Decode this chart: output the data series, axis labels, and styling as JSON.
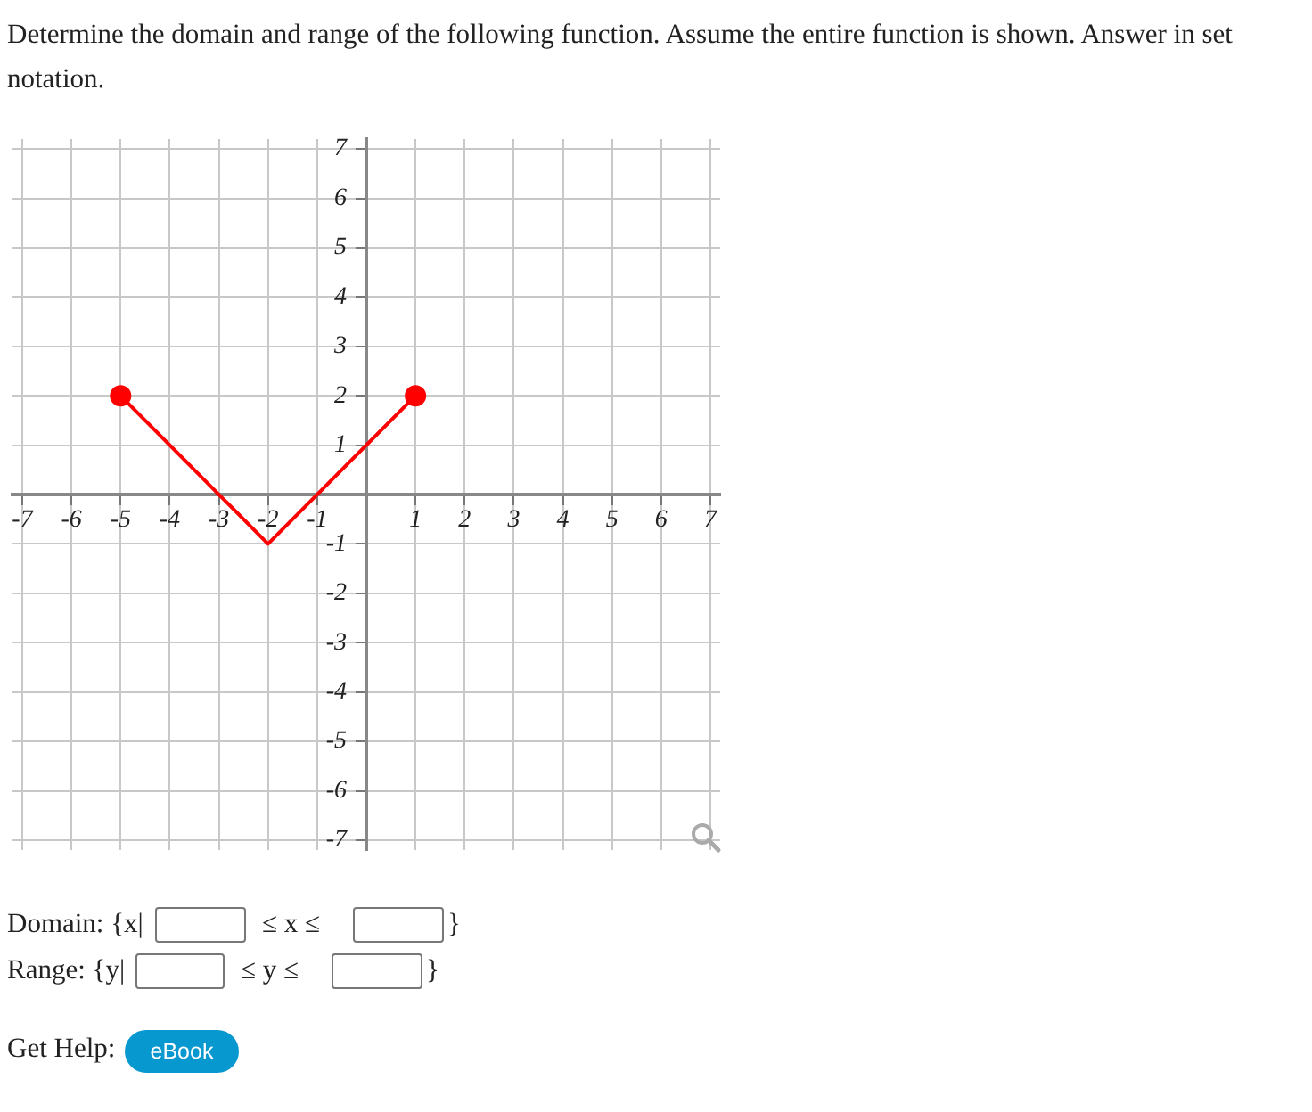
{
  "chart_data": {
    "type": "line",
    "title": "Determine the domain and range of the following function. Assume the entire function is shown. Answer in set notation.",
    "annotations": [
      "Domain: {x|",
      "≤ x ≤",
      "}",
      "Range: {y|",
      "≤ y ≤",
      "}",
      "Get Help:",
      "eBook"
    ],
    "series": [
      {
        "type": "line",
        "color": "#ff0000",
        "x": [
          -5,
          -2,
          1
        ],
        "values": [
          2,
          -1,
          2
        ],
        "marker": "none"
      },
      {
        "type": "scatter",
        "color": "#ff0000",
        "x": [
          -5,
          1
        ],
        "values": [
          2,
          2
        ],
        "marker": "circle"
      }
    ],
    "xlim": [
      -7.2,
      7.2
    ],
    "ylim": [
      -7.2,
      7.2
    ],
    "xticks": [
      -7,
      -6,
      -5,
      -4,
      -3,
      -2,
      -1,
      {
        "value": 0,
        "label": null
      },
      1,
      2,
      3,
      4,
      5,
      6,
      7
    ],
    "yticks": [
      -7,
      -6,
      -5,
      -4,
      -3,
      -2,
      -1,
      {
        "value": 0,
        "label": null
      },
      1,
      2,
      3,
      4,
      5,
      6,
      7
    ],
    "grid": true
  }
}
